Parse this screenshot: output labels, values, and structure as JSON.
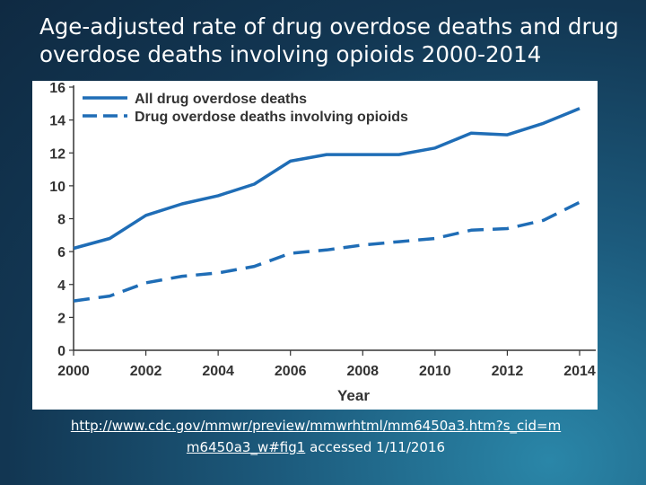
{
  "slide": {
    "title_lines": [
      "Age-adjusted rate of drug overdose deaths and drug",
      "overdose deaths involving opioids 2000-2014"
    ],
    "source_url_part1": "http://www.cdc.gov/mmwr/preview/mmwrhtml/mm6450a3.htm?s_cid=m",
    "source_url_part2": "m6450a3_w#fig1",
    "source_accessed": "accessed 1/11/2016"
  },
  "colors": {
    "line": "#1f6db6",
    "axis": "#333333",
    "background": "#ffffff"
  },
  "chart_data": {
    "type": "line",
    "title": "",
    "xlabel": "Year",
    "ylabel": "",
    "xlim": [
      2000,
      2014
    ],
    "ylim": [
      0,
      16
    ],
    "x_ticks": [
      2000,
      2002,
      2004,
      2006,
      2008,
      2010,
      2012,
      2014
    ],
    "y_ticks": [
      0,
      2,
      4,
      6,
      8,
      10,
      12,
      14,
      16
    ],
    "grid": false,
    "legend_position": "top-left",
    "x": [
      2000,
      2001,
      2002,
      2003,
      2004,
      2005,
      2006,
      2007,
      2008,
      2009,
      2010,
      2011,
      2012,
      2013,
      2014
    ],
    "series": [
      {
        "name": "All drug overdose deaths",
        "style": "solid",
        "values": [
          6.2,
          6.8,
          8.2,
          8.9,
          9.4,
          10.1,
          11.5,
          11.9,
          11.9,
          11.9,
          12.3,
          13.2,
          13.1,
          13.8,
          14.7
        ]
      },
      {
        "name": "Drug overdose deaths involving opioids",
        "style": "dashed",
        "values": [
          3.0,
          3.3,
          4.1,
          4.5,
          4.7,
          5.1,
          5.9,
          6.1,
          6.4,
          6.6,
          6.8,
          7.3,
          7.4,
          7.9,
          9.0
        ]
      }
    ]
  }
}
